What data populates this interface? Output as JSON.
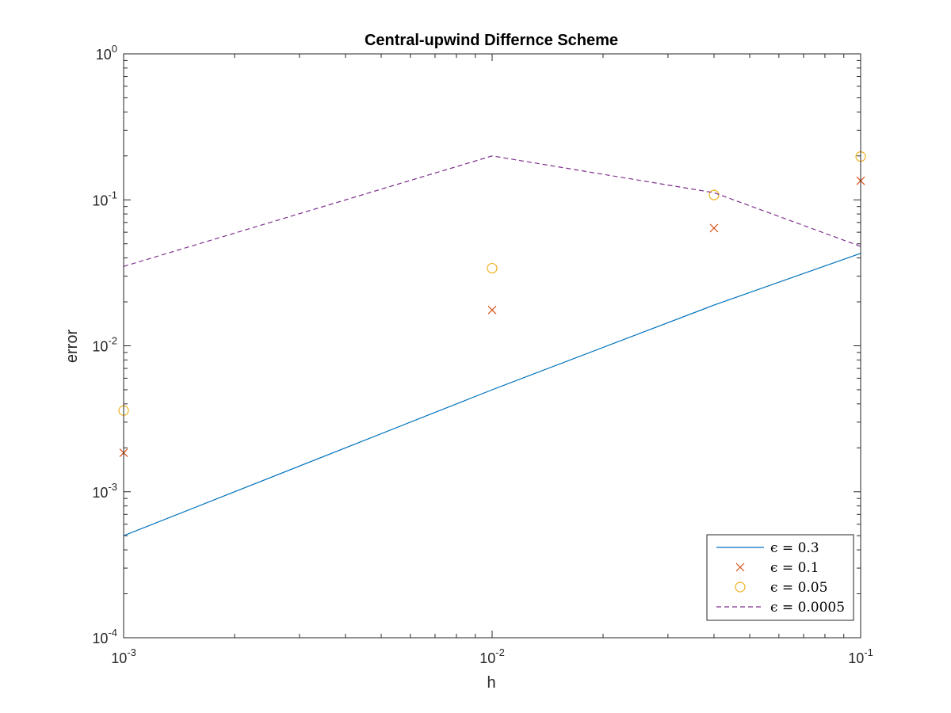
{
  "chart_data": {
    "type": "line",
    "title": "Central-upwind Differnce Scheme",
    "xlabel": "h",
    "ylabel": "error",
    "x_scale": "log",
    "y_scale": "log",
    "xlim": [
      0.001,
      0.1
    ],
    "ylim": [
      0.0001,
      1
    ],
    "x_ticks": [
      {
        "value": 0.001,
        "base": "10",
        "exp": "-3"
      },
      {
        "value": 0.01,
        "base": "10",
        "exp": "-2"
      },
      {
        "value": 0.1,
        "base": "10",
        "exp": "-1"
      }
    ],
    "y_ticks": [
      {
        "value": 0.0001,
        "base": "10",
        "exp": "-4"
      },
      {
        "value": 0.001,
        "base": "10",
        "exp": "-3"
      },
      {
        "value": 0.01,
        "base": "10",
        "exp": "-2"
      },
      {
        "value": 0.1,
        "base": "10",
        "exp": "-1"
      },
      {
        "value": 1,
        "base": "10",
        "exp": "0"
      }
    ],
    "grid": false,
    "legend_position": "bottom-right",
    "series": [
      {
        "name": "ϵ = 0.3",
        "style": "line",
        "color": "#0072BD",
        "x": [
          0.001,
          0.01,
          0.04,
          0.1
        ],
        "y": [
          0.0005,
          0.005,
          0.019,
          0.043
        ]
      },
      {
        "name": "ϵ = 0.1",
        "style": "x-marker",
        "color": "#D95319",
        "x": [
          0.001,
          0.01,
          0.04,
          0.1
        ],
        "y": [
          0.00185,
          0.0176,
          0.064,
          0.135
        ]
      },
      {
        "name": "ϵ = 0.05",
        "style": "o-marker",
        "color": "#EDB120",
        "x": [
          0.001,
          0.01,
          0.04,
          0.1
        ],
        "y": [
          0.0036,
          0.034,
          0.108,
          0.198
        ]
      },
      {
        "name": "ϵ = 0.0005",
        "style": "dashed",
        "color": "#7E2F8E",
        "x": [
          0.001,
          0.01,
          0.04,
          0.1
        ],
        "y": [
          0.035,
          0.2,
          0.112,
          0.048
        ]
      }
    ]
  }
}
